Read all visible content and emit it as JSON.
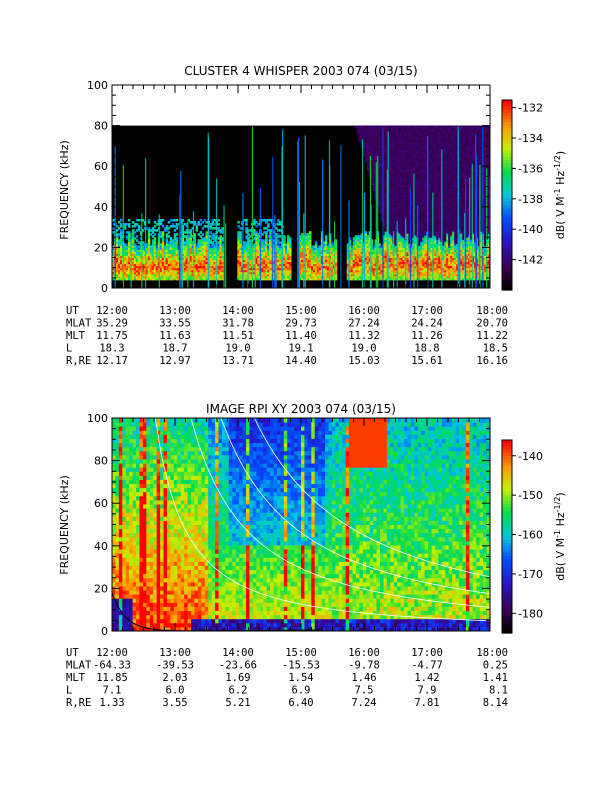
{
  "chart_data": [
    {
      "type": "heatmap",
      "title": "CLUSTER 4 WHISPER 2003 074 (03/15)",
      "ylabel": "FREQUENCY (kHz)",
      "ylim": [
        0,
        100
      ],
      "yticks": [
        "0",
        "20",
        "40",
        "60",
        "80",
        "100"
      ],
      "x": [
        "12:00",
        "13:00",
        "14:00",
        "15:00",
        "16:00",
        "17:00",
        "18:00"
      ],
      "data_max_freq_khz": 80,
      "colorbar": {
        "label": "dB( V M⁻¹ Hz⁻¹ᐟ²)",
        "label_text": "dB( V M",
        "ticks": [
          "-132",
          "-134",
          "-136",
          "-138",
          "-140",
          "-142"
        ],
        "range": [
          -144,
          -131.5
        ]
      },
      "ephemeris": {
        "labels": [
          "UT",
          "MLAT",
          "MLT",
          "L",
          "R,RE"
        ],
        "rows": [
          [
            "12:00",
            "13:00",
            "14:00",
            "15:00",
            "16:00",
            "17:00",
            "18:00"
          ],
          [
            "35.29",
            "33.55",
            "31.78",
            "29.73",
            "27.24",
            "24.24",
            "20.70"
          ],
          [
            "11.75",
            "11.63",
            "11.51",
            "11.40",
            "11.32",
            "11.26",
            "11.22"
          ],
          [
            "18.3",
            "18.7",
            "19.0",
            "19.1",
            "19.0",
            "18.8",
            "18.5"
          ],
          [
            "12.17",
            "12.97",
            "13.71",
            "14.40",
            "15.03",
            "15.61",
            "16.16"
          ]
        ]
      }
    },
    {
      "type": "heatmap",
      "title": "IMAGE RPI XY 2003 074 (03/15)",
      "ylabel": "FREQUENCY (kHz)",
      "ylim": [
        0,
        100
      ],
      "yticks": [
        "0",
        "20",
        "40",
        "60",
        "80",
        "100"
      ],
      "x": [
        "12:00",
        "13:00",
        "14:00",
        "15:00",
        "16:00",
        "17:00",
        "18:00"
      ],
      "colorbar": {
        "label_text": "dB( V M",
        "ticks": [
          "-140",
          "-150",
          "-160",
          "-170",
          "-180"
        ],
        "range": [
          -185,
          -136
        ]
      },
      "ephemeris": {
        "labels": [
          "UT",
          "MLAT",
          "MLT",
          "L",
          "R,RE"
        ],
        "rows": [
          [
            "12:00",
            "13:00",
            "14:00",
            "15:00",
            "16:00",
            "17:00",
            "18:00"
          ],
          [
            "-64.33",
            "-39.53",
            "-23.66",
            "-15.53",
            "-9.78",
            "-4.77",
            "0.25"
          ],
          [
            "11.85",
            "2.03",
            "1.69",
            "1.54",
            "1.46",
            "1.42",
            "1.41"
          ],
          [
            "7.1",
            "6.0",
            "6.2",
            "6.9",
            "7.5",
            "7.9",
            "8.1"
          ],
          [
            "1.33",
            "3.55",
            "5.21",
            "6.40",
            "7.24",
            "7.81",
            "8.14"
          ]
        ]
      }
    }
  ]
}
